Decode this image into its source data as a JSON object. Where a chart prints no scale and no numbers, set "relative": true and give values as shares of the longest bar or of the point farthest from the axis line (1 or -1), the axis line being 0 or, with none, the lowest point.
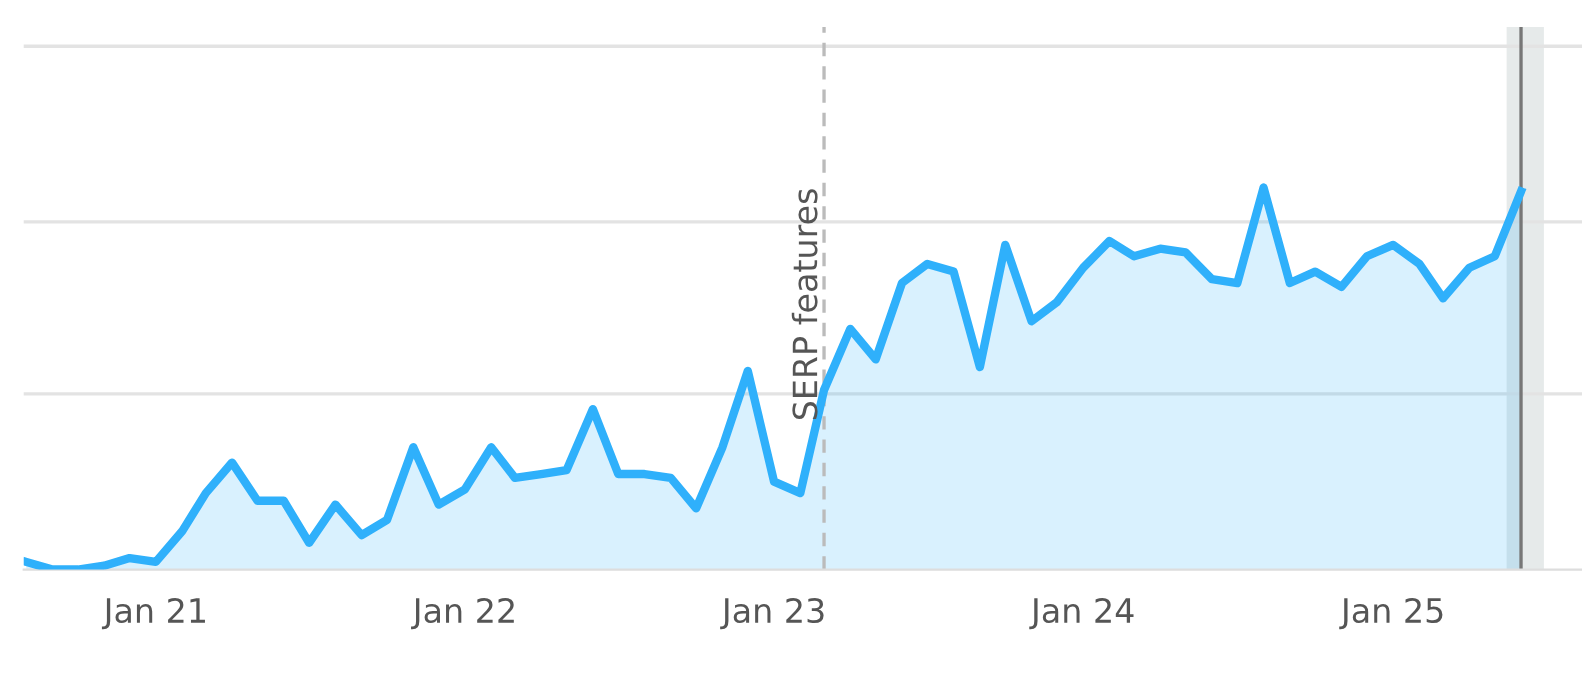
{
  "chart_data": {
    "type": "area",
    "relative": true,
    "color": "#2fb0fb",
    "x": [
      "2020-08",
      "2020-09",
      "2020-10",
      "2020-11",
      "2020-12",
      "2021-01",
      "2021-02",
      "2021-03",
      "2021-04",
      "2021-05",
      "2021-06",
      "2021-07",
      "2021-08",
      "2021-09",
      "2021-10",
      "2021-11",
      "2021-12",
      "2022-01",
      "2022-02",
      "2022-03",
      "2022-04",
      "2022-05",
      "2022-06",
      "2022-07",
      "2022-08",
      "2022-09",
      "2022-10",
      "2022-11",
      "2022-12",
      "2023-01",
      "2023-02",
      "2023-03",
      "2023-04",
      "2023-05",
      "2023-06",
      "2023-07",
      "2023-08",
      "2023-09",
      "2023-10",
      "2023-11",
      "2023-12",
      "2024-01",
      "2024-02",
      "2024-03",
      "2024-04",
      "2024-05",
      "2024-06",
      "2024-07",
      "2024-08",
      "2024-09",
      "2024-10",
      "2024-11",
      "2024-12",
      "2025-01",
      "2025-02",
      "2025-03",
      "2025-04",
      "2025-05",
      "2025-06"
    ],
    "values": [
      0.02,
      0,
      0,
      0.01,
      0.03,
      0.02,
      0.1,
      0.2,
      0.28,
      0.18,
      0.18,
      0.07,
      0.17,
      0.09,
      0.13,
      0.32,
      0.17,
      0.21,
      0.32,
      0.24,
      0.25,
      0.26,
      0.42,
      0.25,
      0.25,
      0.24,
      0.16,
      0.32,
      0.52,
      0.23,
      0.2,
      0.47,
      0.63,
      0.55,
      0.75,
      0.8,
      0.78,
      0.53,
      0.85,
      0.65,
      0.7,
      0.79,
      0.86,
      0.82,
      0.84,
      0.83,
      0.76,
      0.75,
      1.0,
      0.75,
      0.78,
      0.74,
      0.82,
      0.85,
      0.8,
      0.71,
      0.79,
      0.82,
      0.99
    ],
    "xlim": [
      "2020-07-29",
      "2025-08-12"
    ],
    "xticks": [
      {
        "value": "2021-01-01",
        "label": "Jan 21"
      },
      {
        "value": "2022-01-01",
        "label": "Jan 22"
      },
      {
        "value": "2023-01-01",
        "label": "Jan 23"
      },
      {
        "value": "2024-01-01",
        "label": "Jan 24"
      },
      {
        "value": "2025-01-01",
        "label": "Jan 25"
      }
    ],
    "ref_lines": [
      {
        "axis": "x",
        "value": "2023-03-01",
        "label": "SERP features",
        "color": "#bbbbbb",
        "line_style": "dashed"
      },
      {
        "axis": "x",
        "value": "2025-06-01",
        "label": null,
        "color": "#777777",
        "line_style": "solid"
      },
      {
        "axis": "y",
        "value": 0.46,
        "label": null,
        "color": "#e3e3e3",
        "line_style": "solid"
      },
      {
        "axis": "y",
        "value": 0.91,
        "label": null,
        "color": "#e3e3e3",
        "line_style": "solid"
      },
      {
        "axis": "y",
        "value": 1.37,
        "label": null,
        "color": "#e3e3e3",
        "line_style": "solid"
      }
    ],
    "bands": [
      {
        "axis": "x",
        "from": "2025-05-15",
        "to": "2025-06-28",
        "label": null,
        "color": "#e6eaea"
      }
    ]
  }
}
